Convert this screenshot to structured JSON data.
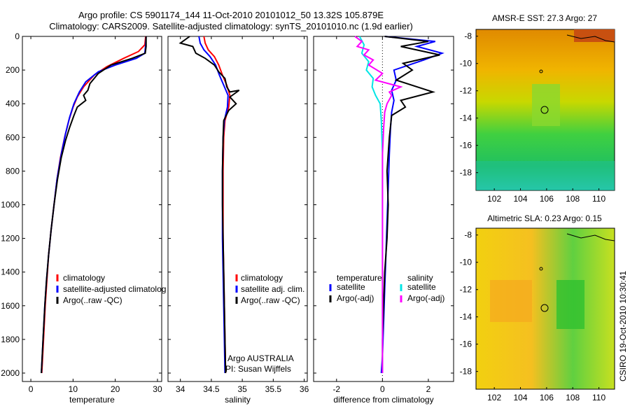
{
  "titles": {
    "line1": "Argo profile: CS 5901174_144 11-Oct-2010 20101012_50 13.32S 105.879E",
    "line2": "Climatology: CARS2009. Satellite-adjusted climatology: synTS_20101010.nc (1.9d earlier)"
  },
  "footer_stamp": "CSIRO 19-Oct-2010 10:30:41",
  "colors": {
    "climatology": "#ff0000",
    "satellite": "#0000ff",
    "argo": "#000000",
    "sal_satellite": "#00e5e5",
    "sal_argo": "#ff00ff"
  },
  "chart_data": [
    {
      "type": "line",
      "panel": "temperature",
      "xlabel": "temperature",
      "xlim": [
        -2,
        31
      ],
      "xticks": [
        0,
        10,
        20,
        30
      ],
      "ylim": [
        0,
        2050
      ],
      "yticks": [
        0,
        200,
        400,
        600,
        800,
        1000,
        1200,
        1400,
        1600,
        1800,
        2000
      ],
      "y_reversed": true,
      "legend": [
        "climatology",
        "satellite-adjusted climatolog",
        "Argo(..raw -QC)"
      ],
      "series": [
        {
          "name": "climatology",
          "color": "red",
          "points": [
            [
              27.2,
              0
            ],
            [
              27.0,
              50
            ],
            [
              25.5,
              90
            ],
            [
              22,
              130
            ],
            [
              18,
              180
            ],
            [
              15,
              230
            ],
            [
              12.5,
              300
            ],
            [
              11,
              360
            ],
            [
              10,
              420
            ],
            [
              9,
              500
            ],
            [
              8,
              600
            ],
            [
              7,
              720
            ],
            [
              6.2,
              850
            ],
            [
              5.5,
              1000
            ],
            [
              4.8,
              1150
            ],
            [
              4.2,
              1300
            ],
            [
              3.8,
              1450
            ],
            [
              3.4,
              1600
            ],
            [
              3.0,
              1800
            ],
            [
              2.6,
              2000
            ]
          ]
        },
        {
          "name": "satellite-adjusted climatolog",
          "color": "blue",
          "points": [
            [
              27.3,
              0
            ],
            [
              27.2,
              50
            ],
            [
              27.0,
              100
            ],
            [
              25,
              130
            ],
            [
              20,
              170
            ],
            [
              16,
              210
            ],
            [
              13,
              270
            ],
            [
              11.5,
              330
            ],
            [
              10.2,
              400
            ],
            [
              9.2,
              480
            ],
            [
              8.2,
              580
            ],
            [
              7.2,
              700
            ],
            [
              6.2,
              850
            ],
            [
              5.5,
              1000
            ],
            [
              4.8,
              1150
            ],
            [
              4.2,
              1300
            ],
            [
              3.7,
              1450
            ],
            [
              3.3,
              1600
            ],
            [
              2.9,
              1800
            ],
            [
              2.5,
              2000
            ]
          ]
        },
        {
          "name": "Argo(..raw -QC)",
          "color": "black",
          "points": [
            [
              27.3,
              0
            ],
            [
              27.3,
              60
            ],
            [
              27.1,
              100
            ],
            [
              24,
              130
            ],
            [
              19,
              170
            ],
            [
              16,
              220
            ],
            [
              14,
              280
            ],
            [
              13.5,
              320
            ],
            [
              12.5,
              350
            ],
            [
              13,
              380
            ],
            [
              11,
              420
            ],
            [
              10.2,
              470
            ],
            [
              9.2,
              540
            ],
            [
              8.2,
              620
            ],
            [
              7.2,
              720
            ],
            [
              6.3,
              850
            ],
            [
              5.5,
              1000
            ],
            [
              4.8,
              1150
            ],
            [
              4.2,
              1300
            ],
            [
              3.7,
              1450
            ],
            [
              3.3,
              1600
            ],
            [
              2.9,
              1800
            ],
            [
              2.5,
              2000
            ]
          ]
        }
      ]
    },
    {
      "type": "line",
      "panel": "salinity",
      "xlabel": "salinity",
      "xlim": [
        33.8,
        36.05
      ],
      "xticks": [
        34,
        34.5,
        35,
        35.5,
        36
      ],
      "xtick_labels": [
        "34",
        "34.5",
        "35",
        "35.5",
        "36"
      ],
      "ylim": [
        0,
        2050
      ],
      "y_reversed": true,
      "legend": [
        "climatology",
        "satellite adj. clim.",
        "Argo(..raw -QC)"
      ],
      "annotations": [
        "Argo AUSTRALIA",
        "PI: Susan Wijffels"
      ],
      "series": [
        {
          "name": "climatology",
          "color": "red",
          "points": [
            [
              34.38,
              0
            ],
            [
              34.4,
              40
            ],
            [
              34.45,
              80
            ],
            [
              34.55,
              120
            ],
            [
              34.62,
              170
            ],
            [
              34.68,
              230
            ],
            [
              34.75,
              290
            ],
            [
              34.8,
              350
            ],
            [
              34.78,
              420
            ],
            [
              34.72,
              500
            ],
            [
              34.7,
              600
            ],
            [
              34.69,
              800
            ],
            [
              34.69,
              1000
            ],
            [
              34.69,
              1200
            ],
            [
              34.7,
              1400
            ],
            [
              34.71,
              1600
            ],
            [
              34.72,
              1800
            ],
            [
              34.73,
              2000
            ]
          ]
        },
        {
          "name": "satellite adj. clim.",
          "color": "blue",
          "points": [
            [
              34.3,
              0
            ],
            [
              34.32,
              40
            ],
            [
              34.38,
              80
            ],
            [
              34.48,
              120
            ],
            [
              34.57,
              170
            ],
            [
              34.63,
              230
            ],
            [
              34.7,
              290
            ],
            [
              34.77,
              350
            ],
            [
              34.76,
              420
            ],
            [
              34.71,
              500
            ],
            [
              34.69,
              600
            ],
            [
              34.68,
              800
            ],
            [
              34.68,
              1000
            ],
            [
              34.68,
              1200
            ],
            [
              34.69,
              1400
            ],
            [
              34.7,
              1600
            ],
            [
              34.71,
              1800
            ],
            [
              34.72,
              2000
            ]
          ]
        },
        {
          "name": "Argo(..raw -QC)",
          "color": "black",
          "points": [
            [
              34.15,
              0
            ],
            [
              34.0,
              40
            ],
            [
              34.2,
              60
            ],
            [
              34.25,
              100
            ],
            [
              34.4,
              130
            ],
            [
              34.55,
              170
            ],
            [
              34.62,
              210
            ],
            [
              34.72,
              250
            ],
            [
              34.75,
              300
            ],
            [
              34.8,
              330
            ],
            [
              34.95,
              320
            ],
            [
              34.8,
              360
            ],
            [
              34.9,
              400
            ],
            [
              34.78,
              440
            ],
            [
              34.7,
              500
            ],
            [
              34.69,
              600
            ],
            [
              34.68,
              800
            ],
            [
              34.68,
              1000
            ],
            [
              34.69,
              1200
            ],
            [
              34.7,
              1400
            ],
            [
              34.71,
              1600
            ],
            [
              34.72,
              1800
            ],
            [
              34.73,
              2000
            ]
          ]
        }
      ]
    },
    {
      "type": "line",
      "panel": "difference",
      "xlabel": "difference from climatology",
      "xlim": [
        -3,
        3.1
      ],
      "xticks": [
        -2,
        0,
        2
      ],
      "ylim": [
        0,
        2050
      ],
      "y_reversed": true,
      "legend_titles": [
        "temperature",
        "salinity"
      ],
      "legend": [
        "satellite",
        "Argo(-adj)",
        "satellite",
        "Argo(-adj)"
      ],
      "series": [
        {
          "name": "temperature satellite",
          "color": "blue",
          "points": [
            [
              0.1,
              0
            ],
            [
              2.3,
              30
            ],
            [
              1.5,
              60
            ],
            [
              2.6,
              100
            ],
            [
              1.8,
              140
            ],
            [
              0.5,
              200
            ],
            [
              0.6,
              260
            ],
            [
              0.4,
              320
            ],
            [
              0.5,
              380
            ],
            [
              0.4,
              450
            ],
            [
              0.35,
              550
            ],
            [
              0.3,
              700
            ],
            [
              0.25,
              900
            ],
            [
              0.2,
              1100
            ],
            [
              0.15,
              1300
            ],
            [
              0.1,
              1500
            ],
            [
              0.05,
              1700
            ],
            [
              0.0,
              1900
            ],
            [
              -0.05,
              2000
            ]
          ]
        },
        {
          "name": "temperature Argo(-adj)",
          "color": "black",
          "points": [
            [
              0.1,
              0
            ],
            [
              2.0,
              30
            ],
            [
              0.8,
              60
            ],
            [
              2.5,
              110
            ],
            [
              0.9,
              160
            ],
            [
              1.3,
              200
            ],
            [
              0.6,
              260
            ],
            [
              2.2,
              330
            ],
            [
              0.8,
              380
            ],
            [
              1.0,
              420
            ],
            [
              0.4,
              470
            ],
            [
              0.3,
              600
            ],
            [
              0.2,
              800
            ],
            [
              0.25,
              1000
            ],
            [
              0.2,
              1200
            ],
            [
              0.1,
              1400
            ],
            [
              0.05,
              1600
            ],
            [
              0.0,
              1800
            ],
            [
              0.0,
              2000
            ]
          ]
        },
        {
          "name": "salinity satellite",
          "color": "#00e5e5",
          "points": [
            [
              -1.0,
              0
            ],
            [
              -0.8,
              50
            ],
            [
              -0.9,
              100
            ],
            [
              -0.6,
              150
            ],
            [
              -0.7,
              200
            ],
            [
              -0.4,
              250
            ],
            [
              -0.45,
              300
            ],
            [
              -0.3,
              350
            ],
            [
              -0.1,
              400
            ],
            [
              -0.05,
              500
            ],
            [
              0.0,
              700
            ],
            [
              0.0,
              1000
            ],
            [
              0.0,
              1400
            ],
            [
              0.0,
              1800
            ],
            [
              0.0,
              2000
            ]
          ]
        },
        {
          "name": "salinity Argo(-adj)",
          "color": "magenta",
          "points": [
            [
              -1.2,
              0
            ],
            [
              -0.9,
              30
            ],
            [
              -1.1,
              60
            ],
            [
              -0.6,
              80
            ],
            [
              -0.8,
              110
            ],
            [
              -0.4,
              140
            ],
            [
              -0.6,
              170
            ],
            [
              0.0,
              220
            ],
            [
              -0.3,
              260
            ],
            [
              0.8,
              300
            ],
            [
              0.3,
              330
            ],
            [
              0.4,
              350
            ],
            [
              0.2,
              400
            ],
            [
              0.1,
              450
            ],
            [
              0.05,
              550
            ],
            [
              0.0,
              700
            ],
            [
              0.0,
              1000
            ],
            [
              0.0,
              1400
            ],
            [
              0.0,
              1800
            ],
            [
              0.0,
              2000
            ]
          ]
        }
      ]
    }
  ],
  "maps": [
    {
      "title": "AMSR-E SST: 27.3 Argo: 27",
      "xticks": [
        "102",
        "104",
        "106",
        "108",
        "110"
      ],
      "yticks": [
        "-8",
        "-10",
        "-12",
        "-14",
        "-16",
        "-18"
      ]
    },
    {
      "title": "Altimetric SLA: 0.23 Argo: 0.15",
      "xticks": [
        "102",
        "104",
        "106",
        "108",
        "110"
      ],
      "yticks": [
        "-8",
        "-10",
        "-12",
        "-14",
        "-16",
        "-18"
      ]
    }
  ]
}
